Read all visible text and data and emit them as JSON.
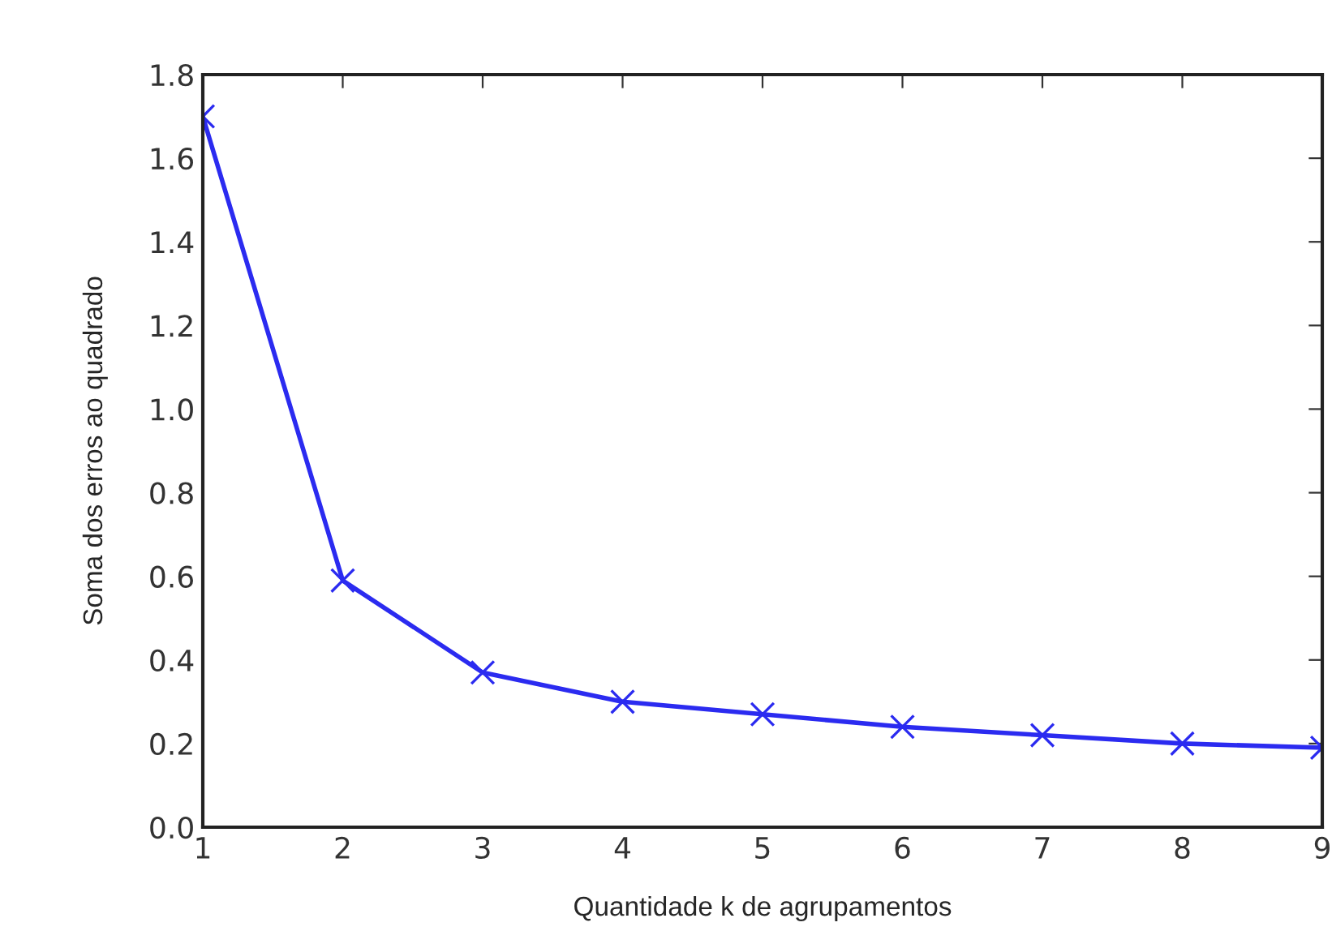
{
  "chart_data": {
    "type": "line",
    "xlabel": "Quantidade k de agrupamentos",
    "ylabel": "Soma dos erros ao quadrado",
    "x": [
      1,
      2,
      3,
      4,
      5,
      6,
      7,
      8,
      9
    ],
    "series": [
      {
        "color": "#2b2bf0",
        "values": [
          1.7,
          0.59,
          0.37,
          0.3,
          0.27,
          0.24,
          0.22,
          0.2,
          0.19
        ]
      }
    ],
    "marker": "cross",
    "line_style": "solid",
    "grid": false,
    "legend": false,
    "xlim": [
      1,
      9
    ],
    "xticks": [
      1,
      2,
      3,
      4,
      5,
      6,
      7,
      8,
      9
    ],
    "ylim": [
      0.0,
      1.8
    ],
    "yticks": [
      {
        "value": 0.0,
        "label": "0.0"
      },
      {
        "value": 0.2,
        "label": "0.2"
      },
      {
        "value": 0.4,
        "label": "0.4"
      },
      {
        "value": 0.6,
        "label": "0.6"
      },
      {
        "value": 0.8,
        "label": "0.8"
      },
      {
        "value": 1.0,
        "label": "1.0"
      },
      {
        "value": 1.2,
        "label": "1.2"
      },
      {
        "value": 1.4,
        "label": "1.4"
      },
      {
        "value": 1.6,
        "label": "1.6"
      },
      {
        "value": 1.8,
        "label": "1.8"
      }
    ]
  }
}
